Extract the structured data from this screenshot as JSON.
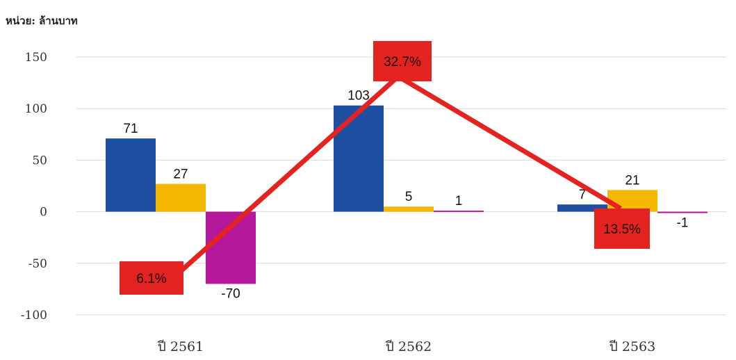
{
  "unit_label": "หน่วย: ล้านบาท",
  "chart_data": {
    "type": "bar",
    "categories": [
      "ปี 2561",
      "ปี 2562",
      "ปี 2563"
    ],
    "series": [
      {
        "values": [
          71,
          103,
          7
        ],
        "color": "#1f4fa3"
      },
      {
        "values": [
          27,
          5,
          21
        ],
        "color": "#f5b800"
      },
      {
        "values": [
          -70,
          1,
          -1
        ],
        "color": "#b5189a"
      }
    ],
    "value_labels": [
      [
        "71",
        "27",
        "-70"
      ],
      [
        "103",
        "5",
        "1"
      ],
      [
        "7",
        "21",
        "-1"
      ]
    ],
    "line": {
      "type": "line",
      "color": "#e42320",
      "values_percent": [
        6.1,
        32.7,
        13.5
      ],
      "labels": [
        "6.1%",
        "32.7%",
        "13.5%"
      ],
      "label_box_color": "#e42320"
    },
    "y_ticks": [
      150,
      100,
      50,
      0,
      -50,
      -100
    ],
    "ylim": [
      -100,
      150
    ],
    "grid": true
  }
}
